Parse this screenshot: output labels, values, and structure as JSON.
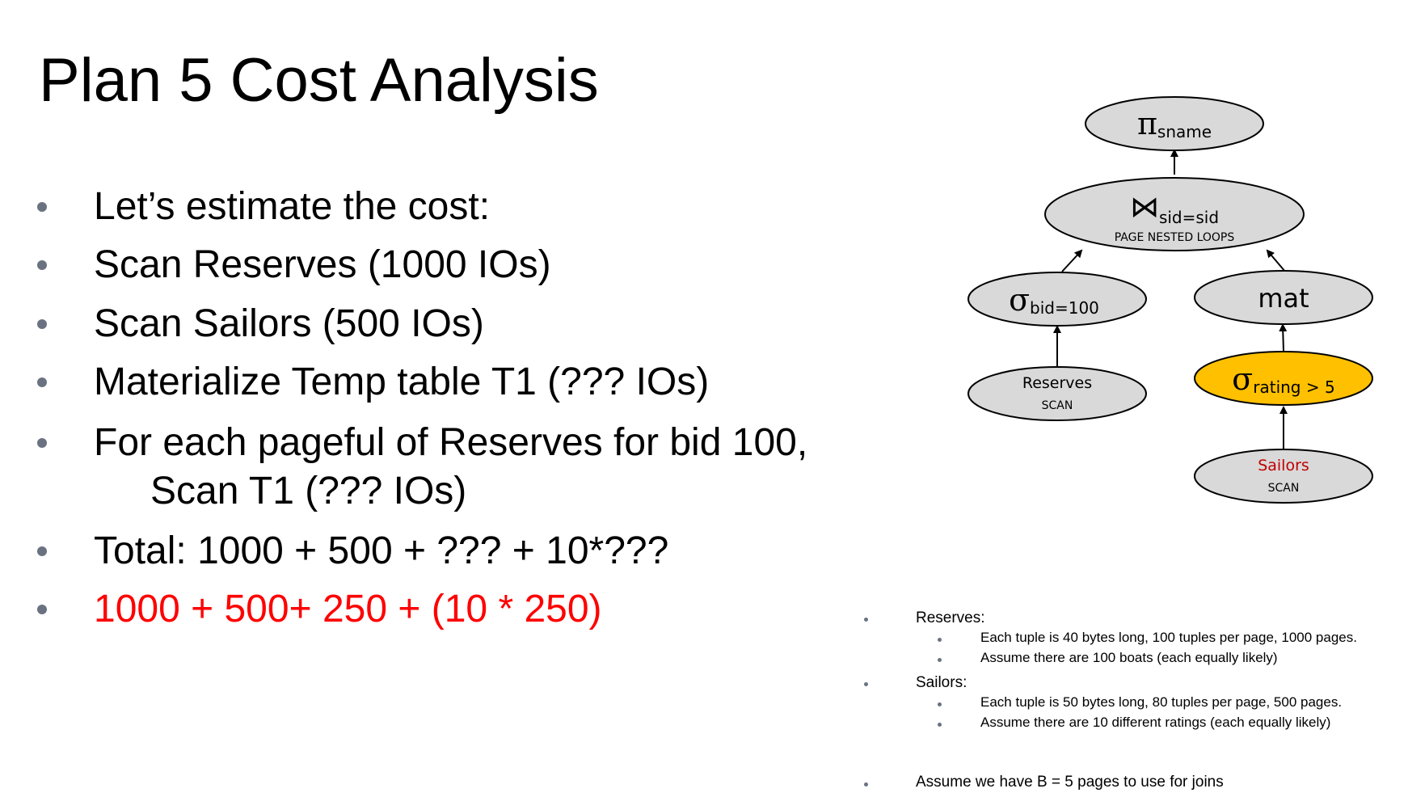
{
  "title": "Plan 5 Cost Analysis",
  "bullets": [
    "Let’s estimate the cost:",
    "Scan Reserves (1000 IOs)",
    "Scan Sailors (500 IOs)",
    "Materialize Temp table T1 (??? IOs)",
    "For each pageful of Reserves for bid 100,",
    "Scan T1 (??? IOs)",
    "Total: 1000 + 500 + ??? + 10*???",
    "1000 + 500+ 250 + (10 * 250)"
  ],
  "diagram": {
    "project": {
      "symbol": "π",
      "sub": "sname"
    },
    "join": {
      "symbol": "⋈",
      "sub": "sid=sid",
      "method": "PAGE NESTED LOOPS"
    },
    "select_bid": {
      "symbol": "σ",
      "sub": "bid=100"
    },
    "mat": {
      "label": "mat"
    },
    "select_rating": {
      "symbol": "σ",
      "sub": "rating > 5"
    },
    "reserves": {
      "name": "Reserves",
      "op": "SCAN"
    },
    "sailors": {
      "name": "Sailors",
      "op": "SCAN"
    },
    "colors": {
      "node_fill": "#d9d9d9",
      "highlight_fill": "#ffc000",
      "sailors_text": "#c00000"
    }
  },
  "notes": {
    "reserves_label": "Reserves:",
    "reserves_items": [
      "Each tuple is 40 bytes long,  100 tuples per page, 1000 pages.",
      "Assume there are 100 boats (each equally likely)"
    ],
    "sailors_label": "Sailors:",
    "sailors_items": [
      "Each tuple is 50 bytes long,  80 tuples per page, 500 pages.",
      "Assume there are 10 different ratings (each equally likely)"
    ],
    "buffer_note": "Assume we have B = 5 pages to use for joins"
  }
}
